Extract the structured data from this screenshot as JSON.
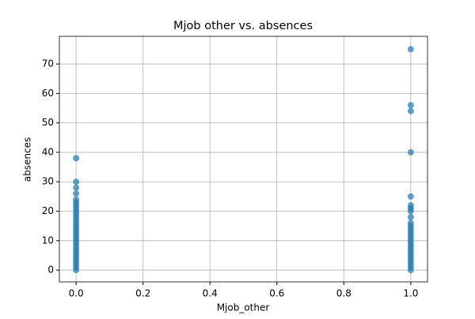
{
  "chart_data": {
    "type": "scatter",
    "title": "Mjob other vs. absences",
    "x_label": "Mjob_other",
    "y_label": "absences",
    "x": [
      0,
      0,
      0,
      0,
      0,
      0,
      0,
      0,
      0,
      0,
      0,
      0,
      0,
      0,
      0,
      0,
      0,
      0,
      0,
      0,
      0,
      0,
      0,
      0,
      0,
      0,
      0,
      0,
      0,
      1,
      1,
      1,
      1,
      1,
      1,
      1,
      1,
      1,
      1,
      1,
      1,
      1,
      1,
      1,
      1,
      1,
      1,
      1,
      1,
      1,
      1,
      1,
      1,
      1,
      1
    ],
    "values": [
      0,
      1,
      2,
      3,
      4,
      5,
      6,
      7,
      8,
      9,
      10,
      11,
      12,
      13,
      14,
      15,
      16,
      17,
      18,
      19,
      20,
      21,
      22,
      23,
      24,
      26,
      28,
      30,
      38,
      0,
      1,
      2,
      3,
      4,
      5,
      6,
      7,
      8,
      9,
      10,
      11,
      12,
      13,
      14,
      15,
      16,
      18,
      20,
      21,
      22,
      25,
      40,
      54,
      56,
      75
    ],
    "color": "#1f77b4",
    "xlim": [
      -0.05,
      1.05
    ],
    "xticks": [
      {
        "value": 0,
        "label": "0.0"
      },
      0.2,
      0.4,
      0.6,
      0.8,
      {
        "value": 1,
        "label": "1.0"
      }
    ],
    "ylim": [
      -4,
      79.4
    ],
    "yticks": [
      0,
      10,
      20,
      30,
      40,
      50,
      60,
      70
    ],
    "grid": true
  }
}
